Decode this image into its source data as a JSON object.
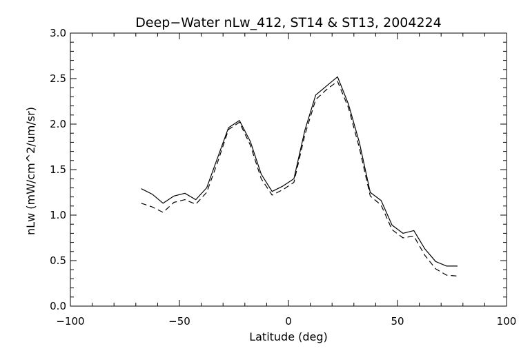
{
  "chart_data": {
    "type": "line",
    "title": "Deep−Water nLw_412, ST14 & ST13, 2004224",
    "xlabel": "Latitude (deg)",
    "ylabel": "nLw (mW/cm^2/um/sr)",
    "xlim": [
      -100,
      100
    ],
    "ylim": [
      0.0,
      3.0
    ],
    "x_ticks": [
      -100,
      -50,
      0,
      50,
      100
    ],
    "x_tick_labels": [
      "−100",
      "−50",
      "0",
      "50",
      "100"
    ],
    "y_ticks": [
      0.0,
      0.5,
      1.0,
      1.5,
      2.0,
      2.5,
      3.0
    ],
    "y_tick_labels": [
      "0.0",
      "0.5",
      "1.0",
      "1.5",
      "2.0",
      "2.5",
      "3.0"
    ],
    "grid": false,
    "legend": false,
    "series": [
      {
        "style": "solid",
        "color": "#000000",
        "x": [
          -67.5,
          -62.5,
          -57.5,
          -52.5,
          -47.5,
          -42.5,
          -37.5,
          -32.5,
          -27.5,
          -22.5,
          -17.5,
          -12.5,
          -7.5,
          -2.5,
          2.5,
          7.5,
          12.5,
          17.5,
          22.5,
          27.5,
          32.5,
          37.5,
          42.5,
          47.5,
          52.5,
          57.5,
          62.5,
          67.5,
          72.5,
          77.5
        ],
        "y": [
          1.29,
          1.23,
          1.13,
          1.21,
          1.24,
          1.17,
          1.3,
          1.63,
          1.96,
          2.04,
          1.81,
          1.45,
          1.26,
          1.32,
          1.4,
          1.93,
          2.32,
          2.42,
          2.52,
          2.22,
          1.8,
          1.25,
          1.16,
          0.89,
          0.8,
          0.83,
          0.63,
          0.49,
          0.44,
          0.44
        ]
      },
      {
        "style": "dashed",
        "color": "#000000",
        "x": [
          -67.5,
          -62.5,
          -57.5,
          -52.5,
          -47.5,
          -42.5,
          -37.5,
          -32.5,
          -27.5,
          -22.5,
          -17.5,
          -12.5,
          -7.5,
          -2.5,
          2.5,
          7.5,
          12.5,
          17.5,
          22.5,
          27.5,
          32.5,
          37.5,
          42.5,
          47.5,
          52.5,
          57.5,
          62.5,
          67.5,
          72.5,
          77.5
        ],
        "y": [
          1.13,
          1.09,
          1.03,
          1.14,
          1.17,
          1.12,
          1.25,
          1.58,
          1.94,
          2.02,
          1.77,
          1.4,
          1.22,
          1.28,
          1.36,
          1.88,
          2.27,
          2.38,
          2.47,
          2.18,
          1.74,
          1.21,
          1.11,
          0.84,
          0.75,
          0.77,
          0.56,
          0.41,
          0.34,
          0.33
        ]
      }
    ]
  }
}
